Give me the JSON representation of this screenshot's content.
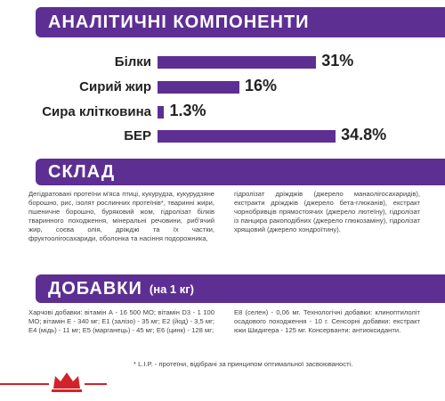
{
  "chart_data": {
    "type": "bar",
    "title": "АНАЛІТИЧНІ КОМПОНЕНТИ",
    "orientation": "horizontal",
    "categories": [
      "Білки",
      "Сирий жир",
      "Сира клітковина",
      "БЕР"
    ],
    "values": [
      31,
      16,
      1.3,
      34.8
    ],
    "value_labels": [
      "31%",
      "16%",
      "1.3%",
      "34.8%"
    ],
    "color": "#5e2f93"
  },
  "composition": {
    "title": "СКЛАД",
    "columns": [
      "Дегідратовані протеїни м'яса птиці, кукурудза, кукурудзяне борошно, рис, ізолят рослинних протеїнів*, тваринні жири, пшеничне борошно, буряковий жом, гідролізат білків тваринного походження, мінеральні речовини, риб'ячий жир, соєва олія, дріжджі та їх частки, фруктоолігосахариди, оболонка та насіння подорожника,",
      "гідролізат дріжджів (джерело манаолігосахаридів), екстракти дріжджів (джерело бета-глюканів), екстракт чорнобривців прямостоячих (джерело лютеїну), гідролізат із панцира ракоподібних (джерело глюкозаміну), гідролізат хрящовий (джерело хондроїтину)."
    ]
  },
  "additives": {
    "title": "ДОБАВКИ",
    "subtitle": "(на 1 кг)",
    "columns": [
      "Харчові добавки: вітамін А - 16 500 МО; вітамін D3 - 1 100 МО; вітамін Е - 340 мг; Е1 (залізо) - 35 мг; Е2 (йод) - 3,5 мг; Е4 (мідь) - 11 мг; Е5 (марганець) - 45 мг; Е6 (цинк) - 128 мг;",
      "Е8 (селен) - 0,06 мг. Технологічні добавки: клиноптилоліт осадового походження - 10 г. Сенсорні добавки: екстракт юки Шидигера - 125 мг. Консерванти: антиоксиданти."
    ]
  },
  "footnote": "* L.I.P. - протеїни, відібрані за принципом оптимальної засвоюваності."
}
